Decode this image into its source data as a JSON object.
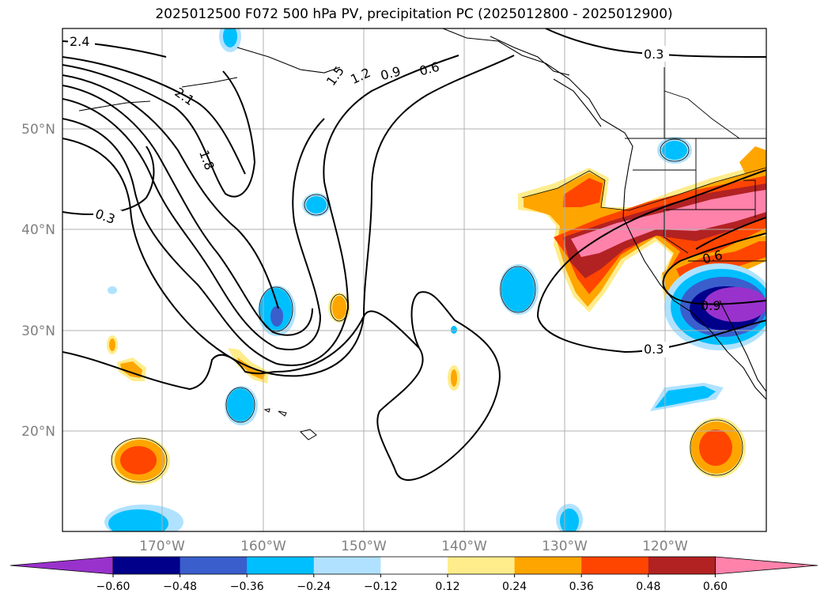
{
  "title": "2025012500 F072 500 hPa PV, precipitation PC (2025012800 - 2025012900)",
  "map": {
    "lat_labels": [
      "50°N",
      "40°N",
      "30°N",
      "20°N"
    ],
    "lon_labels": [
      "170°W",
      "160°W",
      "150°W",
      "140°W",
      "130°W",
      "120°W"
    ],
    "contour_labels": [
      "2.4",
      "2.1",
      "1.8",
      "1.5",
      "1.2",
      "0.9",
      "0.6",
      "0.3",
      "0.3",
      "0.3",
      "0.6",
      "0.9"
    ]
  },
  "colorbar": {
    "colors": [
      "#9932cc",
      "#00008b",
      "#3a5fcd",
      "#00bfff",
      "#b0e2ff",
      "#ffffff",
      "#ffec8b",
      "#ffa500",
      "#ff4500",
      "#b22222",
      "#ff82ab"
    ],
    "tick_labels": [
      "−0.60",
      "−0.48",
      "−0.36",
      "−0.24",
      "−0.12",
      "0.12",
      "0.24",
      "0.36",
      "0.48",
      "0.60"
    ]
  }
}
